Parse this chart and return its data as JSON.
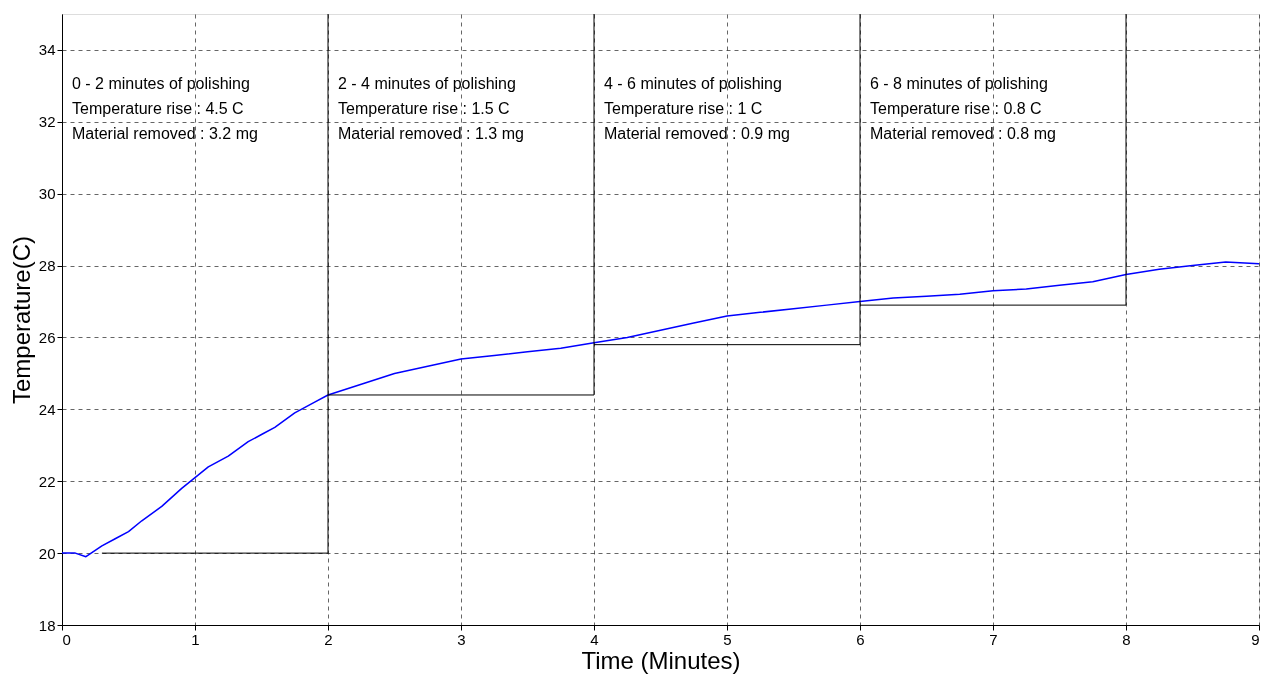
{
  "chart_data": {
    "type": "line",
    "xlabel": "Time (Minutes)",
    "ylabel": "Temperature(C)",
    "xlim": [
      0,
      9
    ],
    "xticks": [
      0,
      1,
      2,
      3,
      4,
      5,
      6,
      7,
      8,
      9
    ],
    "ylim": [
      18,
      35
    ],
    "yticks": [
      18,
      20,
      22,
      24,
      26,
      28,
      30,
      32,
      34
    ],
    "grid": true,
    "marker": "none",
    "line_style": "solid",
    "series": [
      {
        "color": "#0000ff",
        "x": [
          0,
          0.1,
          0.18,
          0.3,
          0.4,
          0.5,
          0.6,
          0.75,
          0.9,
          1.0,
          1.1,
          1.25,
          1.4,
          1.5,
          1.6,
          1.75,
          1.9,
          2.0,
          2.25,
          2.5,
          2.75,
          3.0,
          3.25,
          3.5,
          3.75,
          4.0,
          4.25,
          4.5,
          4.75,
          5.0,
          5.25,
          5.5,
          5.75,
          6.0,
          6.25,
          6.5,
          6.75,
          7.0,
          7.25,
          7.5,
          7.75,
          8.0,
          8.25,
          8.5,
          8.75,
          9.0
        ],
        "values": [
          20.0,
          20.0,
          19.9,
          20.2,
          20.4,
          20.6,
          20.9,
          21.3,
          21.8,
          22.1,
          22.4,
          22.7,
          23.1,
          23.3,
          23.5,
          23.9,
          24.2,
          24.4,
          24.7,
          25.0,
          25.2,
          25.4,
          25.5,
          25.6,
          25.7,
          25.85,
          26.0,
          26.2,
          26.4,
          26.6,
          26.7,
          26.8,
          26.9,
          27.0,
          27.1,
          27.15,
          27.2,
          27.3,
          27.35,
          27.45,
          27.55,
          27.75,
          27.9,
          28.0,
          28.1,
          28.05
        ]
      },
      {
        "color": "#000000",
        "x": [
          0.3,
          2,
          2
        ],
        "values": [
          20,
          20,
          35
        ]
      },
      {
        "color": "#000000",
        "x": [
          2,
          4,
          4
        ],
        "values": [
          24.4,
          24.4,
          35
        ]
      },
      {
        "color": "#000000",
        "x": [
          4,
          6,
          6
        ],
        "values": [
          25.8,
          25.8,
          35
        ]
      },
      {
        "color": "#000000",
        "x": [
          6,
          8,
          8
        ],
        "values": [
          26.9,
          26.9,
          35
        ]
      }
    ],
    "annotations": [
      "0 - 2 minutes of polishing\nTemperature rise : 4.5 C\nMaterial removed : 3.2 mg",
      "2 - 4 minutes of polishing\nTemperature rise : 1.5 C\nMaterial removed : 1.3 mg",
      "4 - 6 minutes of polishing\nTemperature rise : 1 C\nMaterial removed : 0.9 mg",
      "6 - 8 minutes of polishing\nTemperature rise : 0.8 C\nMaterial removed : 0.8 mg"
    ]
  }
}
